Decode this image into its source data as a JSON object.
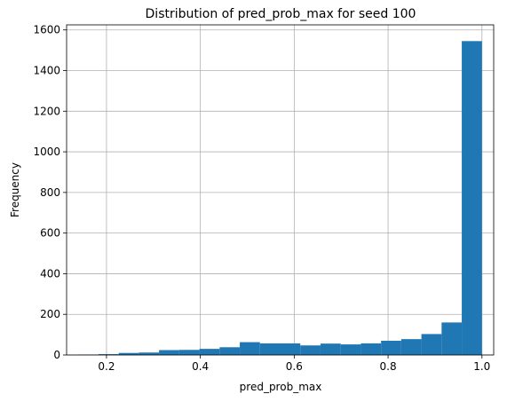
{
  "chart_data": {
    "type": "bar",
    "title": "Distribution of pred_prob_max for seed 100",
    "xlabel": "pred_prob_max",
    "ylabel": "Frequency",
    "xlim": [
      0.115,
      1.025
    ],
    "ylim": [
      0,
      1625
    ],
    "grid": true,
    "bin_width": 0.043,
    "bins": [
      {
        "start": 0.14,
        "end": 0.183,
        "count": 2
      },
      {
        "start": 0.183,
        "end": 0.226,
        "count": 4
      },
      {
        "start": 0.226,
        "end": 0.269,
        "count": 10
      },
      {
        "start": 0.269,
        "end": 0.312,
        "count": 12
      },
      {
        "start": 0.312,
        "end": 0.355,
        "count": 24
      },
      {
        "start": 0.355,
        "end": 0.398,
        "count": 25
      },
      {
        "start": 0.398,
        "end": 0.441,
        "count": 30
      },
      {
        "start": 0.441,
        "end": 0.484,
        "count": 38
      },
      {
        "start": 0.484,
        "end": 0.527,
        "count": 63
      },
      {
        "start": 0.527,
        "end": 0.57,
        "count": 57
      },
      {
        "start": 0.57,
        "end": 0.613,
        "count": 57
      },
      {
        "start": 0.613,
        "end": 0.656,
        "count": 47
      },
      {
        "start": 0.656,
        "end": 0.699,
        "count": 56
      },
      {
        "start": 0.699,
        "end": 0.742,
        "count": 52
      },
      {
        "start": 0.742,
        "end": 0.785,
        "count": 57
      },
      {
        "start": 0.785,
        "end": 0.828,
        "count": 70
      },
      {
        "start": 0.828,
        "end": 0.871,
        "count": 78
      },
      {
        "start": 0.871,
        "end": 0.914,
        "count": 103
      },
      {
        "start": 0.914,
        "end": 0.957,
        "count": 160
      },
      {
        "start": 0.957,
        "end": 1.0,
        "count": 1545
      }
    ],
    "xticks": [
      "0.2",
      "0.4",
      "0.6",
      "0.8",
      "1.0"
    ],
    "xtick_values": [
      0.2,
      0.4,
      0.6,
      0.8,
      1.0
    ],
    "yticks": [
      "0",
      "200",
      "400",
      "600",
      "800",
      "1000",
      "1200",
      "1400",
      "1600"
    ],
    "ytick_values": [
      0,
      200,
      400,
      600,
      800,
      1000,
      1200,
      1400,
      1600
    ],
    "bar_color": "#1f77b4"
  }
}
